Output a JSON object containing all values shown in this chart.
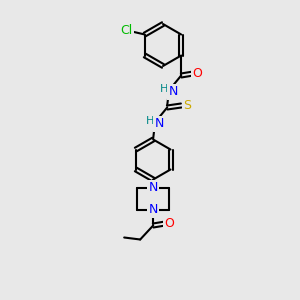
{
  "bg_color": "#e8e8e8",
  "line_color": "#000000",
  "atom_colors": {
    "Cl": "#00bb00",
    "O": "#ff0000",
    "N": "#0000ff",
    "S": "#ccaa00",
    "H": "#008888",
    "C": "#000000"
  },
  "figsize": [
    3.0,
    3.0
  ],
  "dpi": 100,
  "lw": 1.5,
  "fontsize": 9
}
